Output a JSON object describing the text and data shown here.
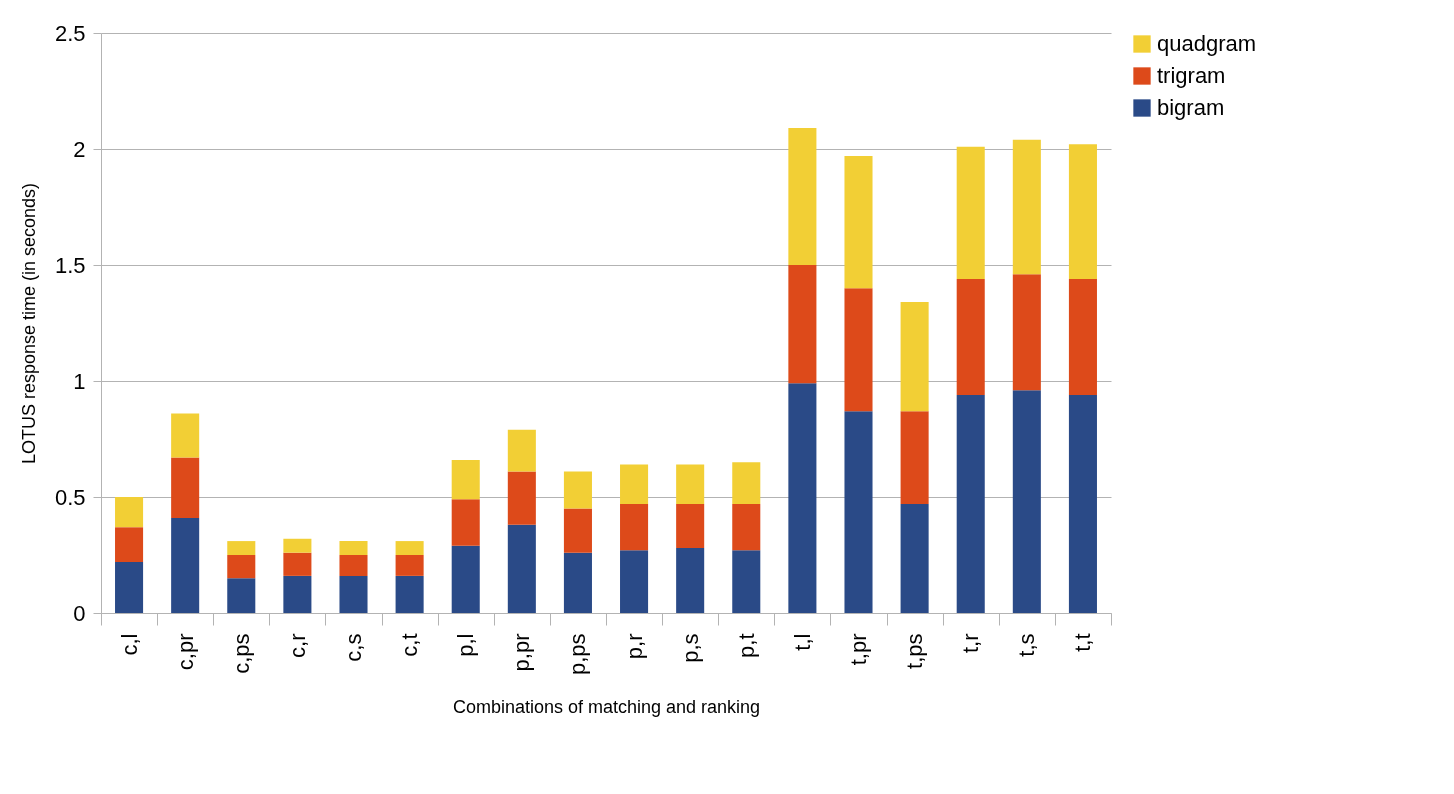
{
  "chart_data": {
    "type": "bar",
    "stacked": true,
    "xlabel": "Combinations of matching and ranking",
    "ylabel": "LOTUS response time (in seconds)",
    "categories": [
      "c,l",
      "c,pr",
      "c,ps",
      "c,r",
      "c,s",
      "c,t",
      "p,l",
      "p,pr",
      "p,ps",
      "p,r",
      "p,s",
      "p,t",
      "t,l",
      "t,pr",
      "t,ps",
      "t,r",
      "t,s",
      "t,t"
    ],
    "series": [
      {
        "name": "bigram",
        "color": "#2a4a87",
        "values": [
          0.22,
          0.41,
          0.15,
          0.16,
          0.16,
          0.16,
          0.29,
          0.38,
          0.26,
          0.27,
          0.28,
          0.27,
          0.99,
          0.87,
          0.47,
          0.94,
          0.96,
          0.94
        ]
      },
      {
        "name": "trigram",
        "color": "#dd4a1a",
        "values": [
          0.15,
          0.26,
          0.1,
          0.1,
          0.09,
          0.09,
          0.2,
          0.23,
          0.19,
          0.2,
          0.19,
          0.2,
          0.51,
          0.53,
          0.4,
          0.5,
          0.5,
          0.5
        ]
      },
      {
        "name": "quadgram",
        "color": "#f2cf35",
        "values": [
          0.13,
          0.19,
          0.06,
          0.06,
          0.06,
          0.06,
          0.17,
          0.18,
          0.16,
          0.17,
          0.17,
          0.18,
          0.59,
          0.57,
          0.47,
          0.57,
          0.58,
          0.58
        ]
      }
    ],
    "ylim": [
      0,
      2.5
    ],
    "yticks": [
      0,
      0.5,
      1,
      1.5,
      2,
      2.5
    ],
    "grid": "y",
    "legend": "right"
  }
}
